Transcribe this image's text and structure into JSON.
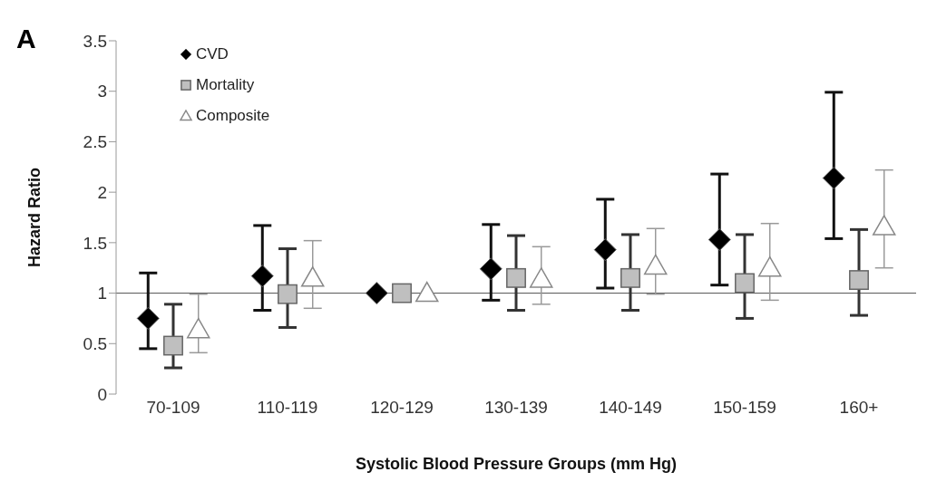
{
  "chart_data": {
    "type": "scatter",
    "title": "A",
    "xlabel": "Systolic Blood Pressure Groups (mm Hg)",
    "ylabel": "Hazard Ratio",
    "categories": [
      "70-109",
      "110-119",
      "120-129",
      "130-139",
      "140-149",
      "150-159",
      "160+"
    ],
    "ylim": [
      0,
      3.5
    ],
    "yticks": [
      0,
      0.5,
      1,
      1.5,
      2,
      2.5,
      3,
      3.5
    ],
    "legend": "top left",
    "ref_lines": [
      {
        "axis": "y",
        "value": 1,
        "color": "#555555"
      }
    ],
    "series": [
      {
        "name": "CVD",
        "color": "#000000",
        "marker": "diamond",
        "values": [
          0.75,
          1.17,
          1,
          1.24,
          1.43,
          1.53,
          2.14
        ],
        "errors": [
          [
            0.45,
            1.2
          ],
          [
            0.83,
            1.67
          ],
          null,
          [
            0.93,
            1.68
          ],
          [
            1.05,
            1.93
          ],
          [
            1.08,
            2.18
          ],
          [
            1.54,
            2.99
          ]
        ]
      },
      {
        "name": "Mortality",
        "color": "#bfbfbf",
        "marker": "square",
        "values": [
          0.48,
          0.99,
          1,
          1.15,
          1.15,
          1.1,
          1.13
        ],
        "errors": [
          [
            0.26,
            0.89
          ],
          [
            0.66,
            1.44
          ],
          null,
          [
            0.83,
            1.57
          ],
          [
            0.83,
            1.58
          ],
          [
            0.75,
            1.58
          ],
          [
            0.78,
            1.63
          ]
        ]
      },
      {
        "name": "Composite",
        "color": "#ffffff",
        "marker": "triangle",
        "values": [
          0.64,
          1.15,
          1,
          1.14,
          1.27,
          1.25,
          1.66
        ],
        "errors": [
          [
            0.41,
            0.99
          ],
          [
            0.85,
            1.52
          ],
          null,
          [
            0.89,
            1.46
          ],
          [
            0.99,
            1.64
          ],
          [
            0.93,
            1.69
          ],
          [
            1.25,
            2.22
          ]
        ]
      }
    ]
  }
}
